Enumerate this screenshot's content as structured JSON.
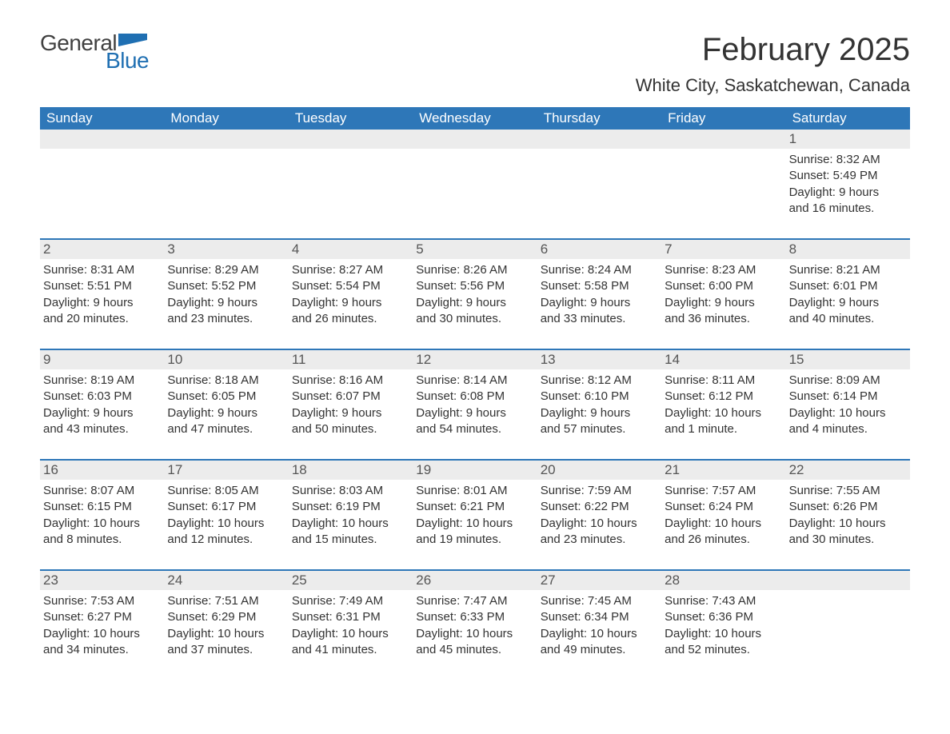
{
  "logo": {
    "text_dark": "General",
    "text_blue": "Blue",
    "shape_color": "#1f6fb2"
  },
  "title": "February 2025",
  "location": "White City, Saskatchewan, Canada",
  "colors": {
    "header_bg": "#2e77b8",
    "header_fg": "#ffffff",
    "daynum_bg": "#ececec",
    "week_divider": "#2e77b8",
    "body_bg": "#ffffff",
    "text": "#333333"
  },
  "fonts": {
    "title_size": 40,
    "location_size": 22,
    "weekday_size": 17,
    "cell_size": 15
  },
  "weekdays": [
    "Sunday",
    "Monday",
    "Tuesday",
    "Wednesday",
    "Thursday",
    "Friday",
    "Saturday"
  ],
  "weeks": [
    [
      null,
      null,
      null,
      null,
      null,
      null,
      {
        "n": "1",
        "sunrise": "8:32 AM",
        "sunset": "5:49 PM",
        "daylight1": "9 hours",
        "daylight2": "and 16 minutes."
      }
    ],
    [
      {
        "n": "2",
        "sunrise": "8:31 AM",
        "sunset": "5:51 PM",
        "daylight1": "9 hours",
        "daylight2": "and 20 minutes."
      },
      {
        "n": "3",
        "sunrise": "8:29 AM",
        "sunset": "5:52 PM",
        "daylight1": "9 hours",
        "daylight2": "and 23 minutes."
      },
      {
        "n": "4",
        "sunrise": "8:27 AM",
        "sunset": "5:54 PM",
        "daylight1": "9 hours",
        "daylight2": "and 26 minutes."
      },
      {
        "n": "5",
        "sunrise": "8:26 AM",
        "sunset": "5:56 PM",
        "daylight1": "9 hours",
        "daylight2": "and 30 minutes."
      },
      {
        "n": "6",
        "sunrise": "8:24 AM",
        "sunset": "5:58 PM",
        "daylight1": "9 hours",
        "daylight2": "and 33 minutes."
      },
      {
        "n": "7",
        "sunrise": "8:23 AM",
        "sunset": "6:00 PM",
        "daylight1": "9 hours",
        "daylight2": "and 36 minutes."
      },
      {
        "n": "8",
        "sunrise": "8:21 AM",
        "sunset": "6:01 PM",
        "daylight1": "9 hours",
        "daylight2": "and 40 minutes."
      }
    ],
    [
      {
        "n": "9",
        "sunrise": "8:19 AM",
        "sunset": "6:03 PM",
        "daylight1": "9 hours",
        "daylight2": "and 43 minutes."
      },
      {
        "n": "10",
        "sunrise": "8:18 AM",
        "sunset": "6:05 PM",
        "daylight1": "9 hours",
        "daylight2": "and 47 minutes."
      },
      {
        "n": "11",
        "sunrise": "8:16 AM",
        "sunset": "6:07 PM",
        "daylight1": "9 hours",
        "daylight2": "and 50 minutes."
      },
      {
        "n": "12",
        "sunrise": "8:14 AM",
        "sunset": "6:08 PM",
        "daylight1": "9 hours",
        "daylight2": "and 54 minutes."
      },
      {
        "n": "13",
        "sunrise": "8:12 AM",
        "sunset": "6:10 PM",
        "daylight1": "9 hours",
        "daylight2": "and 57 minutes."
      },
      {
        "n": "14",
        "sunrise": "8:11 AM",
        "sunset": "6:12 PM",
        "daylight1": "10 hours",
        "daylight2": "and 1 minute."
      },
      {
        "n": "15",
        "sunrise": "8:09 AM",
        "sunset": "6:14 PM",
        "daylight1": "10 hours",
        "daylight2": "and 4 minutes."
      }
    ],
    [
      {
        "n": "16",
        "sunrise": "8:07 AM",
        "sunset": "6:15 PM",
        "daylight1": "10 hours",
        "daylight2": "and 8 minutes."
      },
      {
        "n": "17",
        "sunrise": "8:05 AM",
        "sunset": "6:17 PM",
        "daylight1": "10 hours",
        "daylight2": "and 12 minutes."
      },
      {
        "n": "18",
        "sunrise": "8:03 AM",
        "sunset": "6:19 PM",
        "daylight1": "10 hours",
        "daylight2": "and 15 minutes."
      },
      {
        "n": "19",
        "sunrise": "8:01 AM",
        "sunset": "6:21 PM",
        "daylight1": "10 hours",
        "daylight2": "and 19 minutes."
      },
      {
        "n": "20",
        "sunrise": "7:59 AM",
        "sunset": "6:22 PM",
        "daylight1": "10 hours",
        "daylight2": "and 23 minutes."
      },
      {
        "n": "21",
        "sunrise": "7:57 AM",
        "sunset": "6:24 PM",
        "daylight1": "10 hours",
        "daylight2": "and 26 minutes."
      },
      {
        "n": "22",
        "sunrise": "7:55 AM",
        "sunset": "6:26 PM",
        "daylight1": "10 hours",
        "daylight2": "and 30 minutes."
      }
    ],
    [
      {
        "n": "23",
        "sunrise": "7:53 AM",
        "sunset": "6:27 PM",
        "daylight1": "10 hours",
        "daylight2": "and 34 minutes."
      },
      {
        "n": "24",
        "sunrise": "7:51 AM",
        "sunset": "6:29 PM",
        "daylight1": "10 hours",
        "daylight2": "and 37 minutes."
      },
      {
        "n": "25",
        "sunrise": "7:49 AM",
        "sunset": "6:31 PM",
        "daylight1": "10 hours",
        "daylight2": "and 41 minutes."
      },
      {
        "n": "26",
        "sunrise": "7:47 AM",
        "sunset": "6:33 PM",
        "daylight1": "10 hours",
        "daylight2": "and 45 minutes."
      },
      {
        "n": "27",
        "sunrise": "7:45 AM",
        "sunset": "6:34 PM",
        "daylight1": "10 hours",
        "daylight2": "and 49 minutes."
      },
      {
        "n": "28",
        "sunrise": "7:43 AM",
        "sunset": "6:36 PM",
        "daylight1": "10 hours",
        "daylight2": "and 52 minutes."
      },
      null
    ]
  ],
  "labels": {
    "sunrise": "Sunrise:",
    "sunset": "Sunset:",
    "daylight": "Daylight:"
  }
}
